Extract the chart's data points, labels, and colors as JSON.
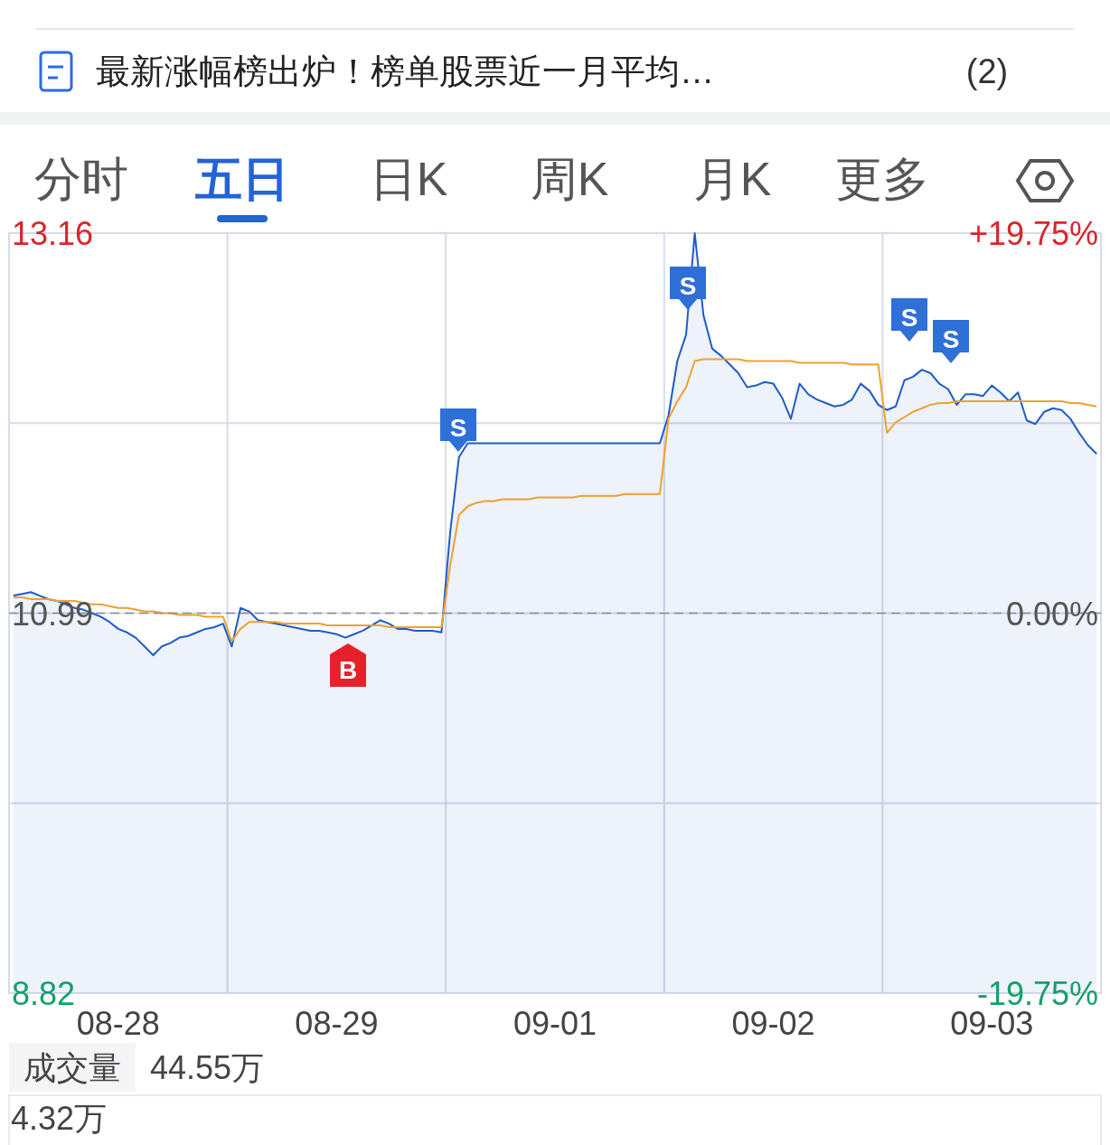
{
  "chart_data": {
    "type": "line",
    "title": "最新涨幅榜出炉！榜单股票近一月平均…",
    "annotations": [
      "(2)",
      "分时",
      "五日",
      "日K",
      "周K",
      "月K",
      "更多",
      "成交量",
      "44.55万",
      "4.32万",
      "S",
      "S",
      "S",
      "S",
      "B"
    ],
    "categories": [
      null,
      null,
      null,
      null,
      null,
      null,
      null,
      null,
      null,
      null,
      null,
      null,
      "08-28",
      null,
      null,
      null,
      null,
      null,
      null,
      null,
      null,
      null,
      null,
      null,
      null,
      null,
      null,
      null,
      null,
      null,
      null,
      null,
      null,
      null,
      null,
      null,
      null,
      "08-29",
      null,
      null,
      null,
      null,
      null,
      null,
      null,
      null,
      null,
      null,
      null,
      null,
      null,
      null,
      null,
      null,
      null,
      null,
      null,
      null,
      null,
      null,
      null,
      null,
      "09-01",
      null,
      null,
      null,
      null,
      null,
      null,
      null,
      null,
      null,
      null,
      null,
      null,
      null,
      null,
      null,
      null,
      null,
      null,
      null,
      null,
      null,
      null,
      null,
      null,
      "09-02",
      null,
      null,
      null,
      null,
      null,
      null,
      null,
      null,
      null,
      null,
      null,
      null,
      null,
      null,
      null,
      null,
      null,
      null,
      null,
      null,
      null,
      null,
      null,
      null,
      "09-03",
      null,
      null,
      null,
      null,
      null,
      null,
      null,
      null,
      null,
      null,
      null,
      null
    ],
    "ylim": [
      8.82,
      13.16
    ],
    "yticks": [
      8.82,
      {
        "value": 9.905,
        "label": null
      },
      10.99,
      {
        "value": 12.075,
        "label": null
      },
      13.16
    ],
    "y2lim": [
      -19.75,
      19.75
    ],
    "y2ticks": [
      {
        "value": -19.75,
        "label": "-19.75%"
      },
      {
        "value": 0,
        "label": "0.00%"
      },
      {
        "value": 19.75,
        "label": "+19.75%"
      }
    ],
    "ref_lines": [
      {
        "axis": "y",
        "value": 10.99,
        "line_style": "dashed",
        "color": "#8a8f99"
      }
    ],
    "grid": true,
    "series": [
      {
        "type": "area",
        "color": "#1f5cc8",
        "values": [
          11.09,
          11.1,
          11.11,
          11.09,
          11.07,
          11.06,
          11.04,
          11.02,
          11.01,
          10.99,
          10.97,
          10.94,
          10.9,
          10.88,
          10.85,
          10.8,
          10.75,
          10.8,
          10.82,
          10.85,
          10.86,
          10.88,
          10.9,
          10.91,
          10.93,
          10.8,
          11.02,
          11.0,
          10.95,
          10.94,
          10.93,
          10.92,
          10.91,
          10.9,
          10.89,
          10.89,
          10.88,
          10.87,
          10.85,
          10.87,
          10.89,
          10.92,
          10.95,
          10.93,
          10.9,
          10.9,
          10.89,
          10.89,
          10.89,
          10.88,
          11.45,
          11.88,
          11.96,
          11.96,
          11.96,
          11.96,
          11.96,
          11.96,
          11.96,
          11.96,
          11.96,
          11.96,
          11.96,
          11.96,
          11.96,
          11.96,
          11.96,
          11.96,
          11.96,
          11.96,
          11.96,
          11.96,
          11.96,
          11.96,
          11.96,
          12.12,
          12.43,
          12.58,
          13.16,
          12.69,
          12.5,
          12.46,
          12.41,
          12.36,
          12.28,
          12.29,
          12.31,
          12.3,
          12.22,
          12.1,
          12.3,
          12.24,
          12.21,
          12.19,
          12.17,
          12.18,
          12.21,
          12.3,
          12.26,
          12.18,
          12.15,
          12.17,
          12.32,
          12.34,
          12.38,
          12.36,
          12.3,
          12.27,
          12.18,
          12.24,
          12.24,
          12.23,
          12.29,
          12.25,
          12.2,
          12.25,
          12.09,
          12.07,
          12.14,
          12.16,
          12.15,
          12.1,
          12.02,
          11.95,
          11.9
        ]
      },
      {
        "type": "line",
        "color": "#f0a030",
        "values": [
          11.08,
          11.08,
          11.07,
          11.07,
          11.07,
          11.06,
          11.06,
          11.06,
          11.05,
          11.04,
          11.04,
          11.03,
          11.02,
          11.02,
          11.01,
          11.0,
          11.0,
          10.99,
          10.99,
          10.98,
          10.98,
          10.98,
          10.97,
          10.97,
          10.97,
          10.83,
          10.9,
          10.94,
          10.94,
          10.94,
          10.94,
          10.93,
          10.93,
          10.93,
          10.93,
          10.93,
          10.92,
          10.92,
          10.92,
          10.92,
          10.92,
          10.92,
          10.92,
          10.91,
          10.91,
          10.91,
          10.91,
          10.91,
          10.91,
          10.91,
          11.26,
          11.55,
          11.6,
          11.62,
          11.63,
          11.63,
          11.64,
          11.64,
          11.64,
          11.64,
          11.65,
          11.65,
          11.65,
          11.65,
          11.65,
          11.66,
          11.66,
          11.66,
          11.66,
          11.66,
          11.67,
          11.67,
          11.67,
          11.67,
          11.67,
          12.1,
          12.2,
          12.28,
          12.43,
          12.44,
          12.44,
          12.44,
          12.44,
          12.44,
          12.43,
          12.43,
          12.43,
          12.43,
          12.43,
          12.43,
          12.42,
          12.42,
          12.42,
          12.42,
          12.42,
          12.42,
          12.41,
          12.41,
          12.41,
          12.41,
          12.02,
          12.08,
          12.11,
          12.14,
          12.16,
          12.18,
          12.19,
          12.19,
          12.2,
          12.2,
          12.2,
          12.2,
          12.2,
          12.2,
          12.2,
          12.2,
          12.2,
          12.2,
          12.2,
          12.2,
          12.2,
          12.19,
          12.19,
          12.18,
          12.17
        ]
      }
    ]
  }
}
